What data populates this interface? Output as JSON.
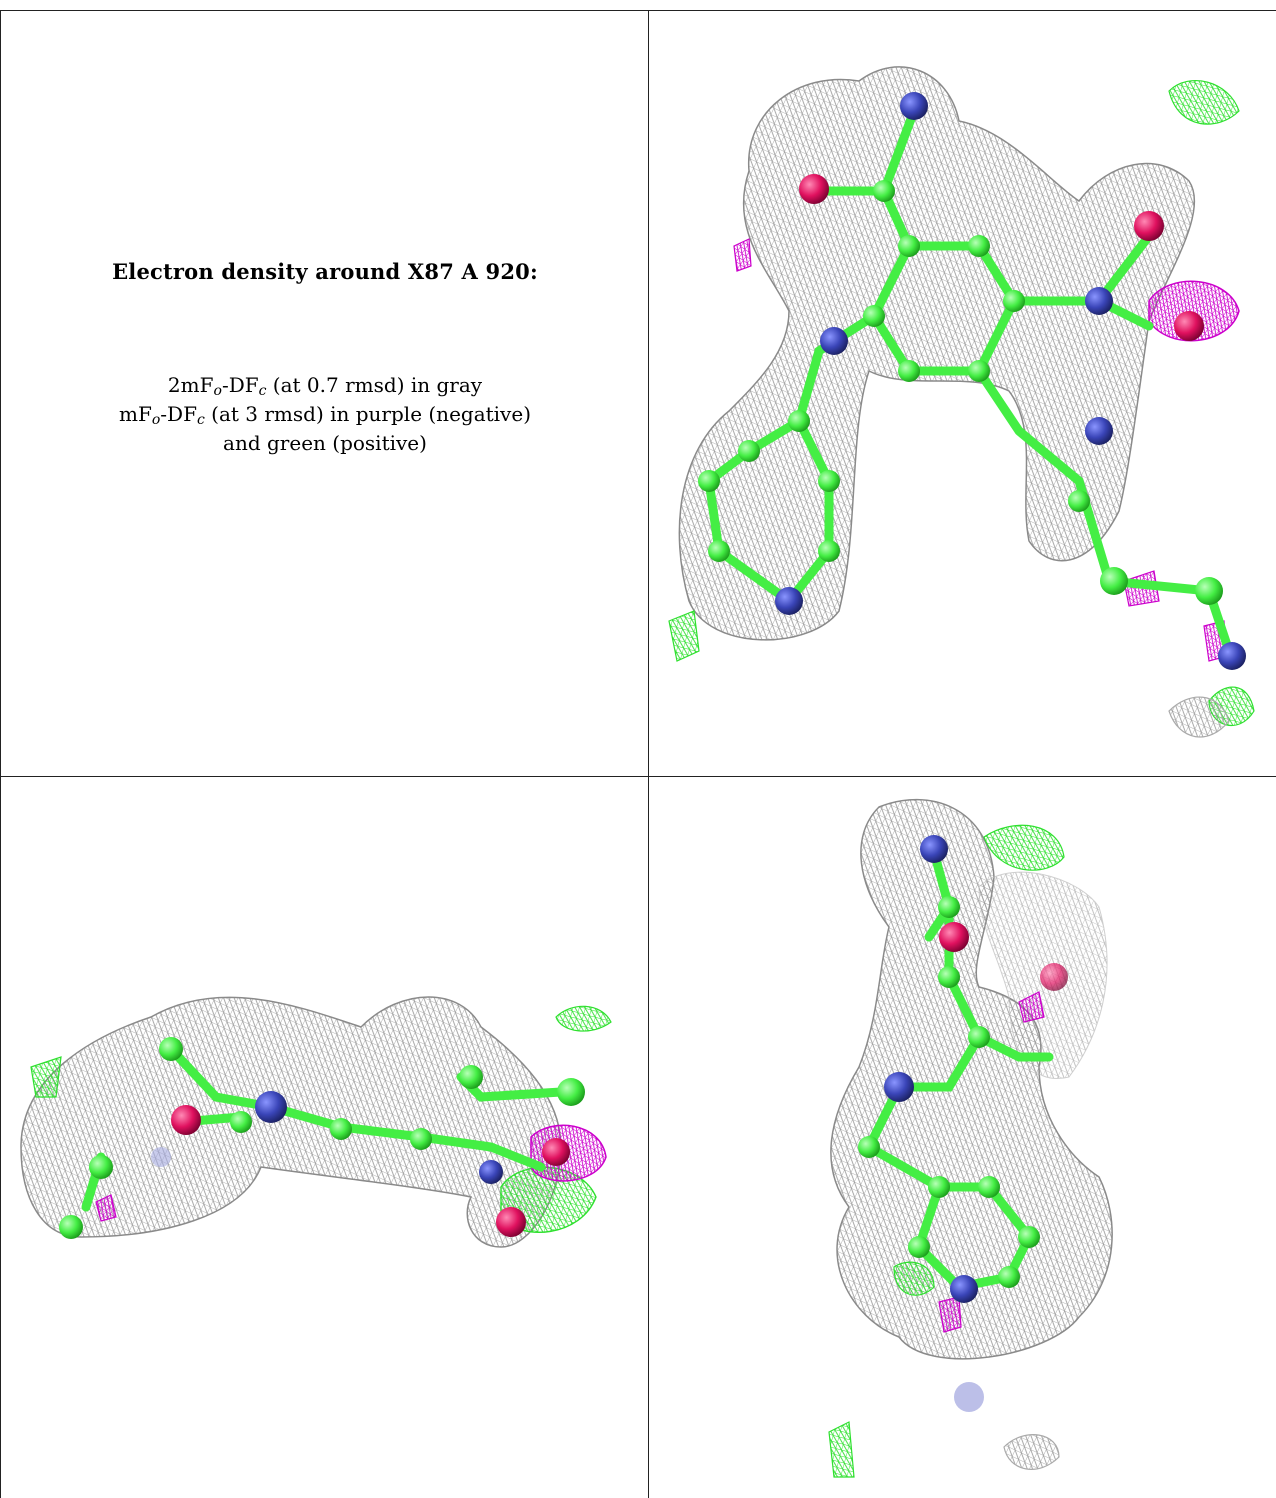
{
  "title": "Electron density around X87 A 920:",
  "legend": {
    "line1_pre": "2mF",
    "line1_sub1": "o",
    "line1_mid": "-DF",
    "line1_sub2": "c",
    "line1_post": " (at 0.7 rmsd) in gray",
    "line2_pre": "mF",
    "line2_sub1": "o",
    "line2_mid": "-DF",
    "line2_sub2": "c",
    "line2_post": " (at 3 rmsd) in purple (negative)",
    "line3": "and green (positive)"
  },
  "colors": {
    "mesh_gray": "#9a9a9a",
    "mesh_green": "#2ee02e",
    "mesh_purple": "#cc00cc",
    "carbon": "#44ee44",
    "nitrogen": "#3a45b8",
    "oxygen": "#e0115f",
    "grid": "#222222"
  },
  "panels": [
    {
      "name": "view-top-right",
      "description_icon": "molecule-density-view"
    },
    {
      "name": "view-bottom-left",
      "description_icon": "molecule-density-view"
    },
    {
      "name": "view-bottom-right",
      "description_icon": "molecule-density-view"
    }
  ]
}
